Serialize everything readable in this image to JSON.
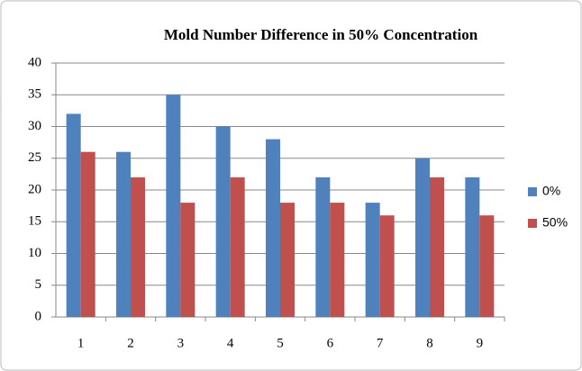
{
  "chart_data": {
    "type": "bar",
    "title": "Mold Number Difference in 50% Concentration",
    "categories": [
      "1",
      "2",
      "3",
      "4",
      "5",
      "6",
      "7",
      "8",
      "9"
    ],
    "series": [
      {
        "name": "0%",
        "color": "#4f81bd",
        "values": [
          32,
          26,
          35,
          30,
          28,
          22,
          18,
          25,
          22
        ]
      },
      {
        "name": "50%",
        "color": "#c0504d",
        "values": [
          26,
          22,
          18,
          22,
          18,
          18,
          16,
          22,
          16
        ]
      }
    ],
    "ylim": [
      0,
      40
    ],
    "yticks": [
      0,
      5,
      10,
      15,
      20,
      25,
      30,
      35,
      40
    ],
    "grid": true,
    "legend": "right"
  }
}
